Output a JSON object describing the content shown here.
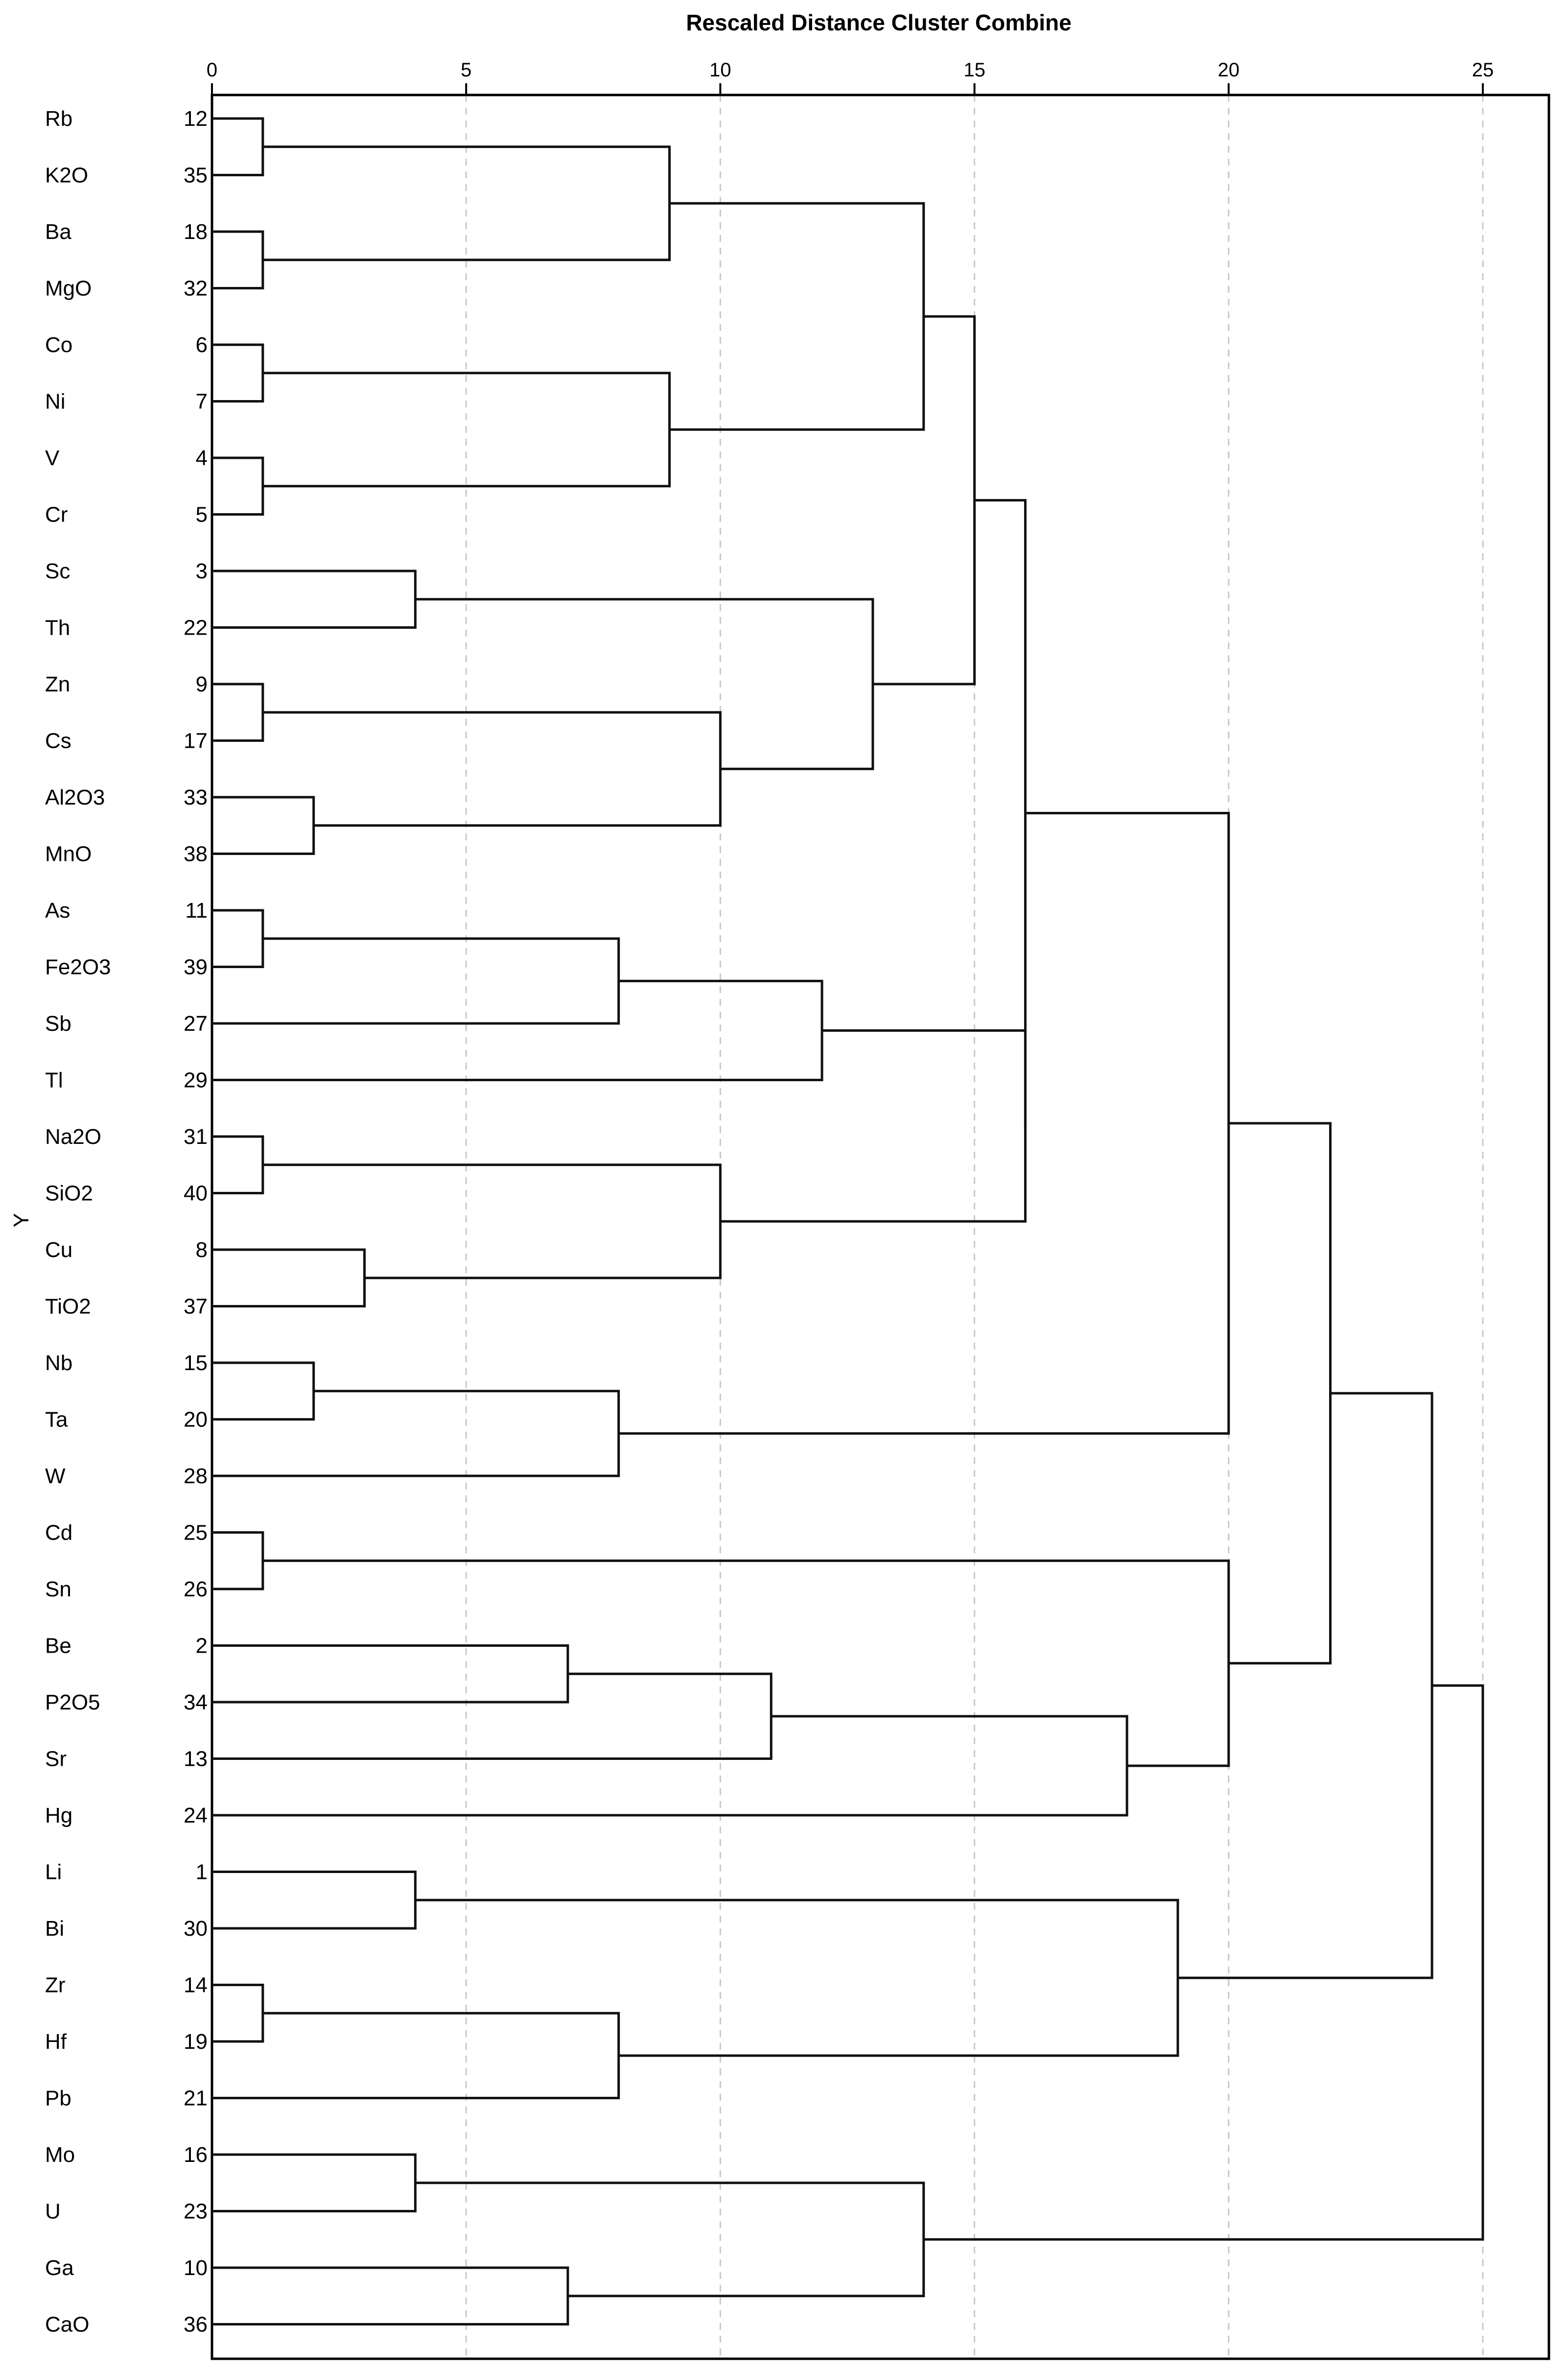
{
  "chart_data": {
    "type": "dendrogram",
    "title": "Rescaled Distance Cluster Combine",
    "ylabel": "Y",
    "xlim": [
      0,
      26.3
    ],
    "ticks": [
      0,
      5,
      10,
      15,
      20,
      25
    ],
    "leaves": [
      {
        "label": "Rb",
        "id": "12"
      },
      {
        "label": "K2O",
        "id": "35"
      },
      {
        "label": "Ba",
        "id": "18"
      },
      {
        "label": "MgO",
        "id": "32"
      },
      {
        "label": "Co",
        "id": "6"
      },
      {
        "label": "Ni",
        "id": "7"
      },
      {
        "label": "V",
        "id": "4"
      },
      {
        "label": "Cr",
        "id": "5"
      },
      {
        "label": "Sc",
        "id": "3"
      },
      {
        "label": "Th",
        "id": "22"
      },
      {
        "label": "Zn",
        "id": "9"
      },
      {
        "label": "Cs",
        "id": "17"
      },
      {
        "label": "Al2O3",
        "id": "33"
      },
      {
        "label": "MnO",
        "id": "38"
      },
      {
        "label": "As",
        "id": "11"
      },
      {
        "label": "Fe2O3",
        "id": "39"
      },
      {
        "label": "Sb",
        "id": "27"
      },
      {
        "label": "Tl",
        "id": "29"
      },
      {
        "label": "Na2O",
        "id": "31"
      },
      {
        "label": "SiO2",
        "id": "40"
      },
      {
        "label": "Cu",
        "id": "8"
      },
      {
        "label": "TiO2",
        "id": "37"
      },
      {
        "label": "Nb",
        "id": "15"
      },
      {
        "label": "Ta",
        "id": "20"
      },
      {
        "label": "W",
        "id": "28"
      },
      {
        "label": "Cd",
        "id": "25"
      },
      {
        "label": "Sn",
        "id": "26"
      },
      {
        "label": "Be",
        "id": "2"
      },
      {
        "label": "P2O5",
        "id": "34"
      },
      {
        "label": "Sr",
        "id": "13"
      },
      {
        "label": "Hg",
        "id": "24"
      },
      {
        "label": "Li",
        "id": "1"
      },
      {
        "label": "Bi",
        "id": "30"
      },
      {
        "label": "Zr",
        "id": "14"
      },
      {
        "label": "Hf",
        "id": "19"
      },
      {
        "label": "Pb",
        "id": "21"
      },
      {
        "label": "Mo",
        "id": "16"
      },
      {
        "label": "U",
        "id": "23"
      },
      {
        "label": "Ga",
        "id": "10"
      },
      {
        "label": "CaO",
        "id": "36"
      }
    ],
    "merges": [
      {
        "id": "A",
        "a": 0,
        "b": 1,
        "d": 1
      },
      {
        "id": "B",
        "a": 2,
        "b": 3,
        "d": 1
      },
      {
        "id": "C",
        "a": "A",
        "b": "B",
        "d": 9
      },
      {
        "id": "D",
        "a": 4,
        "b": 5,
        "d": 1
      },
      {
        "id": "E",
        "a": 6,
        "b": 7,
        "d": 1
      },
      {
        "id": "F",
        "a": "D",
        "b": "E",
        "d": 9
      },
      {
        "id": "G",
        "a": "C",
        "b": "F",
        "d": 14
      },
      {
        "id": "H",
        "a": 8,
        "b": 9,
        "d": 4
      },
      {
        "id": "I",
        "a": 10,
        "b": 11,
        "d": 1
      },
      {
        "id": "J",
        "a": 12,
        "b": 13,
        "d": 2
      },
      {
        "id": "K",
        "a": "I",
        "b": "J",
        "d": 10
      },
      {
        "id": "L",
        "a": "H",
        "b": "K",
        "d": 13
      },
      {
        "id": "M",
        "a": "G",
        "b": "L",
        "d": 15
      },
      {
        "id": "N",
        "a": 14,
        "b": 15,
        "d": 1
      },
      {
        "id": "O",
        "a": "N",
        "b": 16,
        "d": 8
      },
      {
        "id": "P",
        "a": "O",
        "b": 17,
        "d": 12
      },
      {
        "id": "Q",
        "a": 18,
        "b": 19,
        "d": 1
      },
      {
        "id": "R",
        "a": 20,
        "b": 21,
        "d": 3
      },
      {
        "id": "S",
        "a": "Q",
        "b": "R",
        "d": 10
      },
      {
        "id": "T",
        "a": "P",
        "b": "S",
        "d": 16
      },
      {
        "id": "U",
        "a": "M",
        "b": "T",
        "d": 16
      },
      {
        "id": "V",
        "a": 22,
        "b": 23,
        "d": 2
      },
      {
        "id": "W",
        "a": "V",
        "b": 24,
        "d": 8
      },
      {
        "id": "X",
        "a": "U",
        "b": "W",
        "d": 20
      },
      {
        "id": "Y2",
        "a": 25,
        "b": 26,
        "d": 1
      },
      {
        "id": "Z",
        "a": 27,
        "b": 28,
        "d": 7
      },
      {
        "id": "AA",
        "a": "Z",
        "b": 29,
        "d": 11
      },
      {
        "id": "AB",
        "a": "AA",
        "b": 30,
        "d": 18
      },
      {
        "id": "AC",
        "a": "Y2",
        "b": "AB",
        "d": 20
      },
      {
        "id": "AD",
        "a": "X",
        "b": "AC",
        "d": 22
      },
      {
        "id": "AE",
        "a": 31,
        "b": 32,
        "d": 4
      },
      {
        "id": "AF",
        "a": 33,
        "b": 34,
        "d": 1
      },
      {
        "id": "AG",
        "a": "AF",
        "b": 35,
        "d": 8
      },
      {
        "id": "AH",
        "a": "AE",
        "b": "AG",
        "d": 19
      },
      {
        "id": "AI",
        "a": "AD",
        "b": "AH",
        "d": 24
      },
      {
        "id": "AJ",
        "a": 36,
        "b": 37,
        "d": 4
      },
      {
        "id": "AK",
        "a": 38,
        "b": 39,
        "d": 7
      },
      {
        "id": "AL",
        "a": "AJ",
        "b": "AK",
        "d": 14
      },
      {
        "id": "AM",
        "a": "AI",
        "b": "AL",
        "d": 25
      }
    ]
  }
}
